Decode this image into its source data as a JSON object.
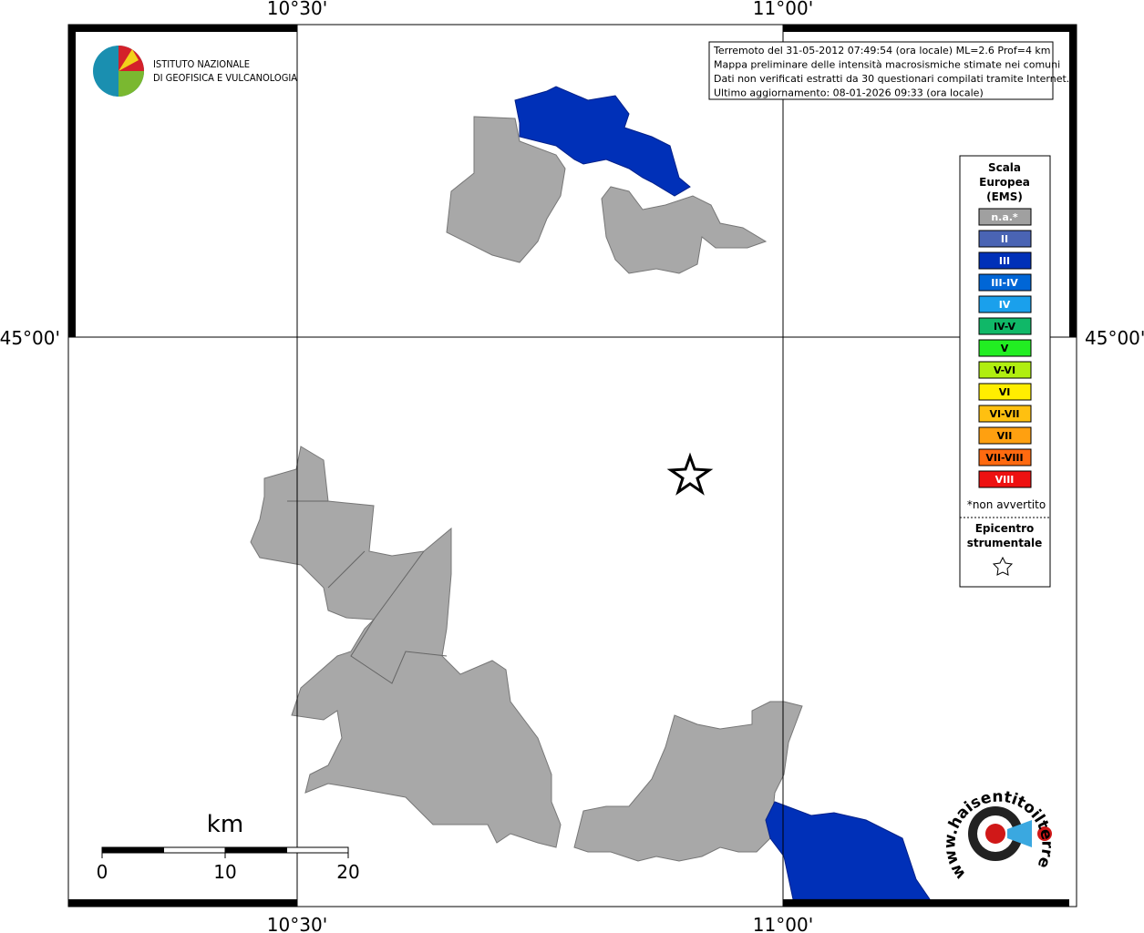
{
  "map": {
    "graticule": {
      "top": [
        "10°30'",
        "11°00'"
      ],
      "bottom": [
        "10°30'",
        "11°00'"
      ],
      "left": "45°00'",
      "right": "45°00'"
    },
    "logo": {
      "line1": "ISTITUTO NAZIONALE",
      "line2": "DI GEOFISICA E VULCANOLOGIA"
    },
    "info": [
      "Terremoto del 31-05-2012 07:49:54 (ora locale) ML=2.6 Prof=4 km",
      "Mappa preliminare delle intensità macrosismiche stimate nei comuni",
      "Dati non verificati estratti da 30 questionari compilati tramite Internet.",
      "Ultimo aggiornamento: 08-01-2026 09:33 (ora locale)"
    ],
    "legend": {
      "title": [
        "Scala",
        "Europea",
        "(EMS)"
      ],
      "items": [
        {
          "label": "n.a.*",
          "color": "#a0a0a0",
          "text_color": "#ffffff"
        },
        {
          "label": "II",
          "color": "#4a64b4",
          "text_color": "#ffffff"
        },
        {
          "label": "III",
          "color": "#0030b8",
          "text_color": "#ffffff"
        },
        {
          "label": "III-IV",
          "color": "#0066d6",
          "text_color": "#ffffff"
        },
        {
          "label": "IV",
          "color": "#1aa0ec",
          "text_color": "#ffffff"
        },
        {
          "label": "IV-V",
          "color": "#10b868",
          "text_color": "#000000"
        },
        {
          "label": "V",
          "color": "#22ee22",
          "text_color": "#000000"
        },
        {
          "label": "V-VI",
          "color": "#b0ee10",
          "text_color": "#000000"
        },
        {
          "label": "VI",
          "color": "#ffee00",
          "text_color": "#000000"
        },
        {
          "label": "VI-VII",
          "color": "#ffc010",
          "text_color": "#000000"
        },
        {
          "label": "VII",
          "color": "#ffa010",
          "text_color": "#000000"
        },
        {
          "label": "VII-VIII",
          "color": "#ff6a10",
          "text_color": "#000000"
        },
        {
          "label": "VIII",
          "color": "#ee1111",
          "text_color": "#ffffff"
        }
      ],
      "note": "*non avvertito",
      "epicentre": [
        "Epicentro",
        "strumentale"
      ]
    },
    "scale_bar": {
      "unit": "km",
      "labels": [
        "0",
        "10",
        "20"
      ]
    },
    "site_logo": "www.haisentitoilterremoto.it"
  }
}
